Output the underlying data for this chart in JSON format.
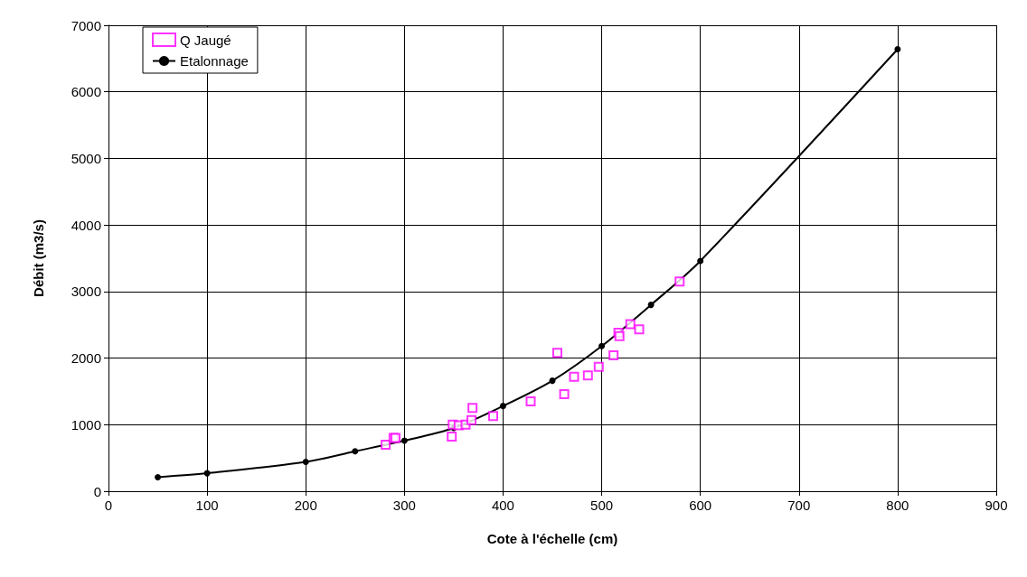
{
  "chart_data": {
    "type": "scatter",
    "xlabel": "Cote à l'échelle (cm)",
    "ylabel": "Débit (m3/s)",
    "xlim": [
      0,
      900
    ],
    "xticks": [
      0,
      100,
      200,
      300,
      400,
      500,
      600,
      700,
      800,
      900
    ],
    "ylim": [
      0,
      7000
    ],
    "yticks": [
      0,
      1000,
      2000,
      3000,
      4000,
      5000,
      6000,
      7000
    ],
    "grid": true,
    "legend": "top left",
    "series": [
      {
        "name": "Q Jaugé",
        "marker": "square",
        "color": "#ff00ff",
        "x": [
          281,
          289,
          291,
          348,
          349,
          355,
          362,
          368,
          369,
          390,
          428,
          455,
          462,
          472,
          486,
          497,
          512,
          517,
          518,
          529,
          538,
          579
        ],
        "values": [
          700,
          800,
          800,
          820,
          1000,
          990,
          1000,
          1070,
          1250,
          1130,
          1350,
          2080,
          1460,
          1720,
          1740,
          1870,
          2040,
          2380,
          2330,
          2510,
          2430,
          3150
        ]
      },
      {
        "name": "Etalonnage",
        "type": "line",
        "marker": "circle",
        "color": "#000000",
        "x": [
          50,
          100,
          200,
          250,
          300,
          350,
          400,
          450,
          500,
          550,
          600,
          800
        ],
        "values": [
          210,
          270,
          440,
          600,
          760,
          950,
          1280,
          1660,
          2180,
          2800,
          3460,
          6640
        ]
      }
    ]
  }
}
